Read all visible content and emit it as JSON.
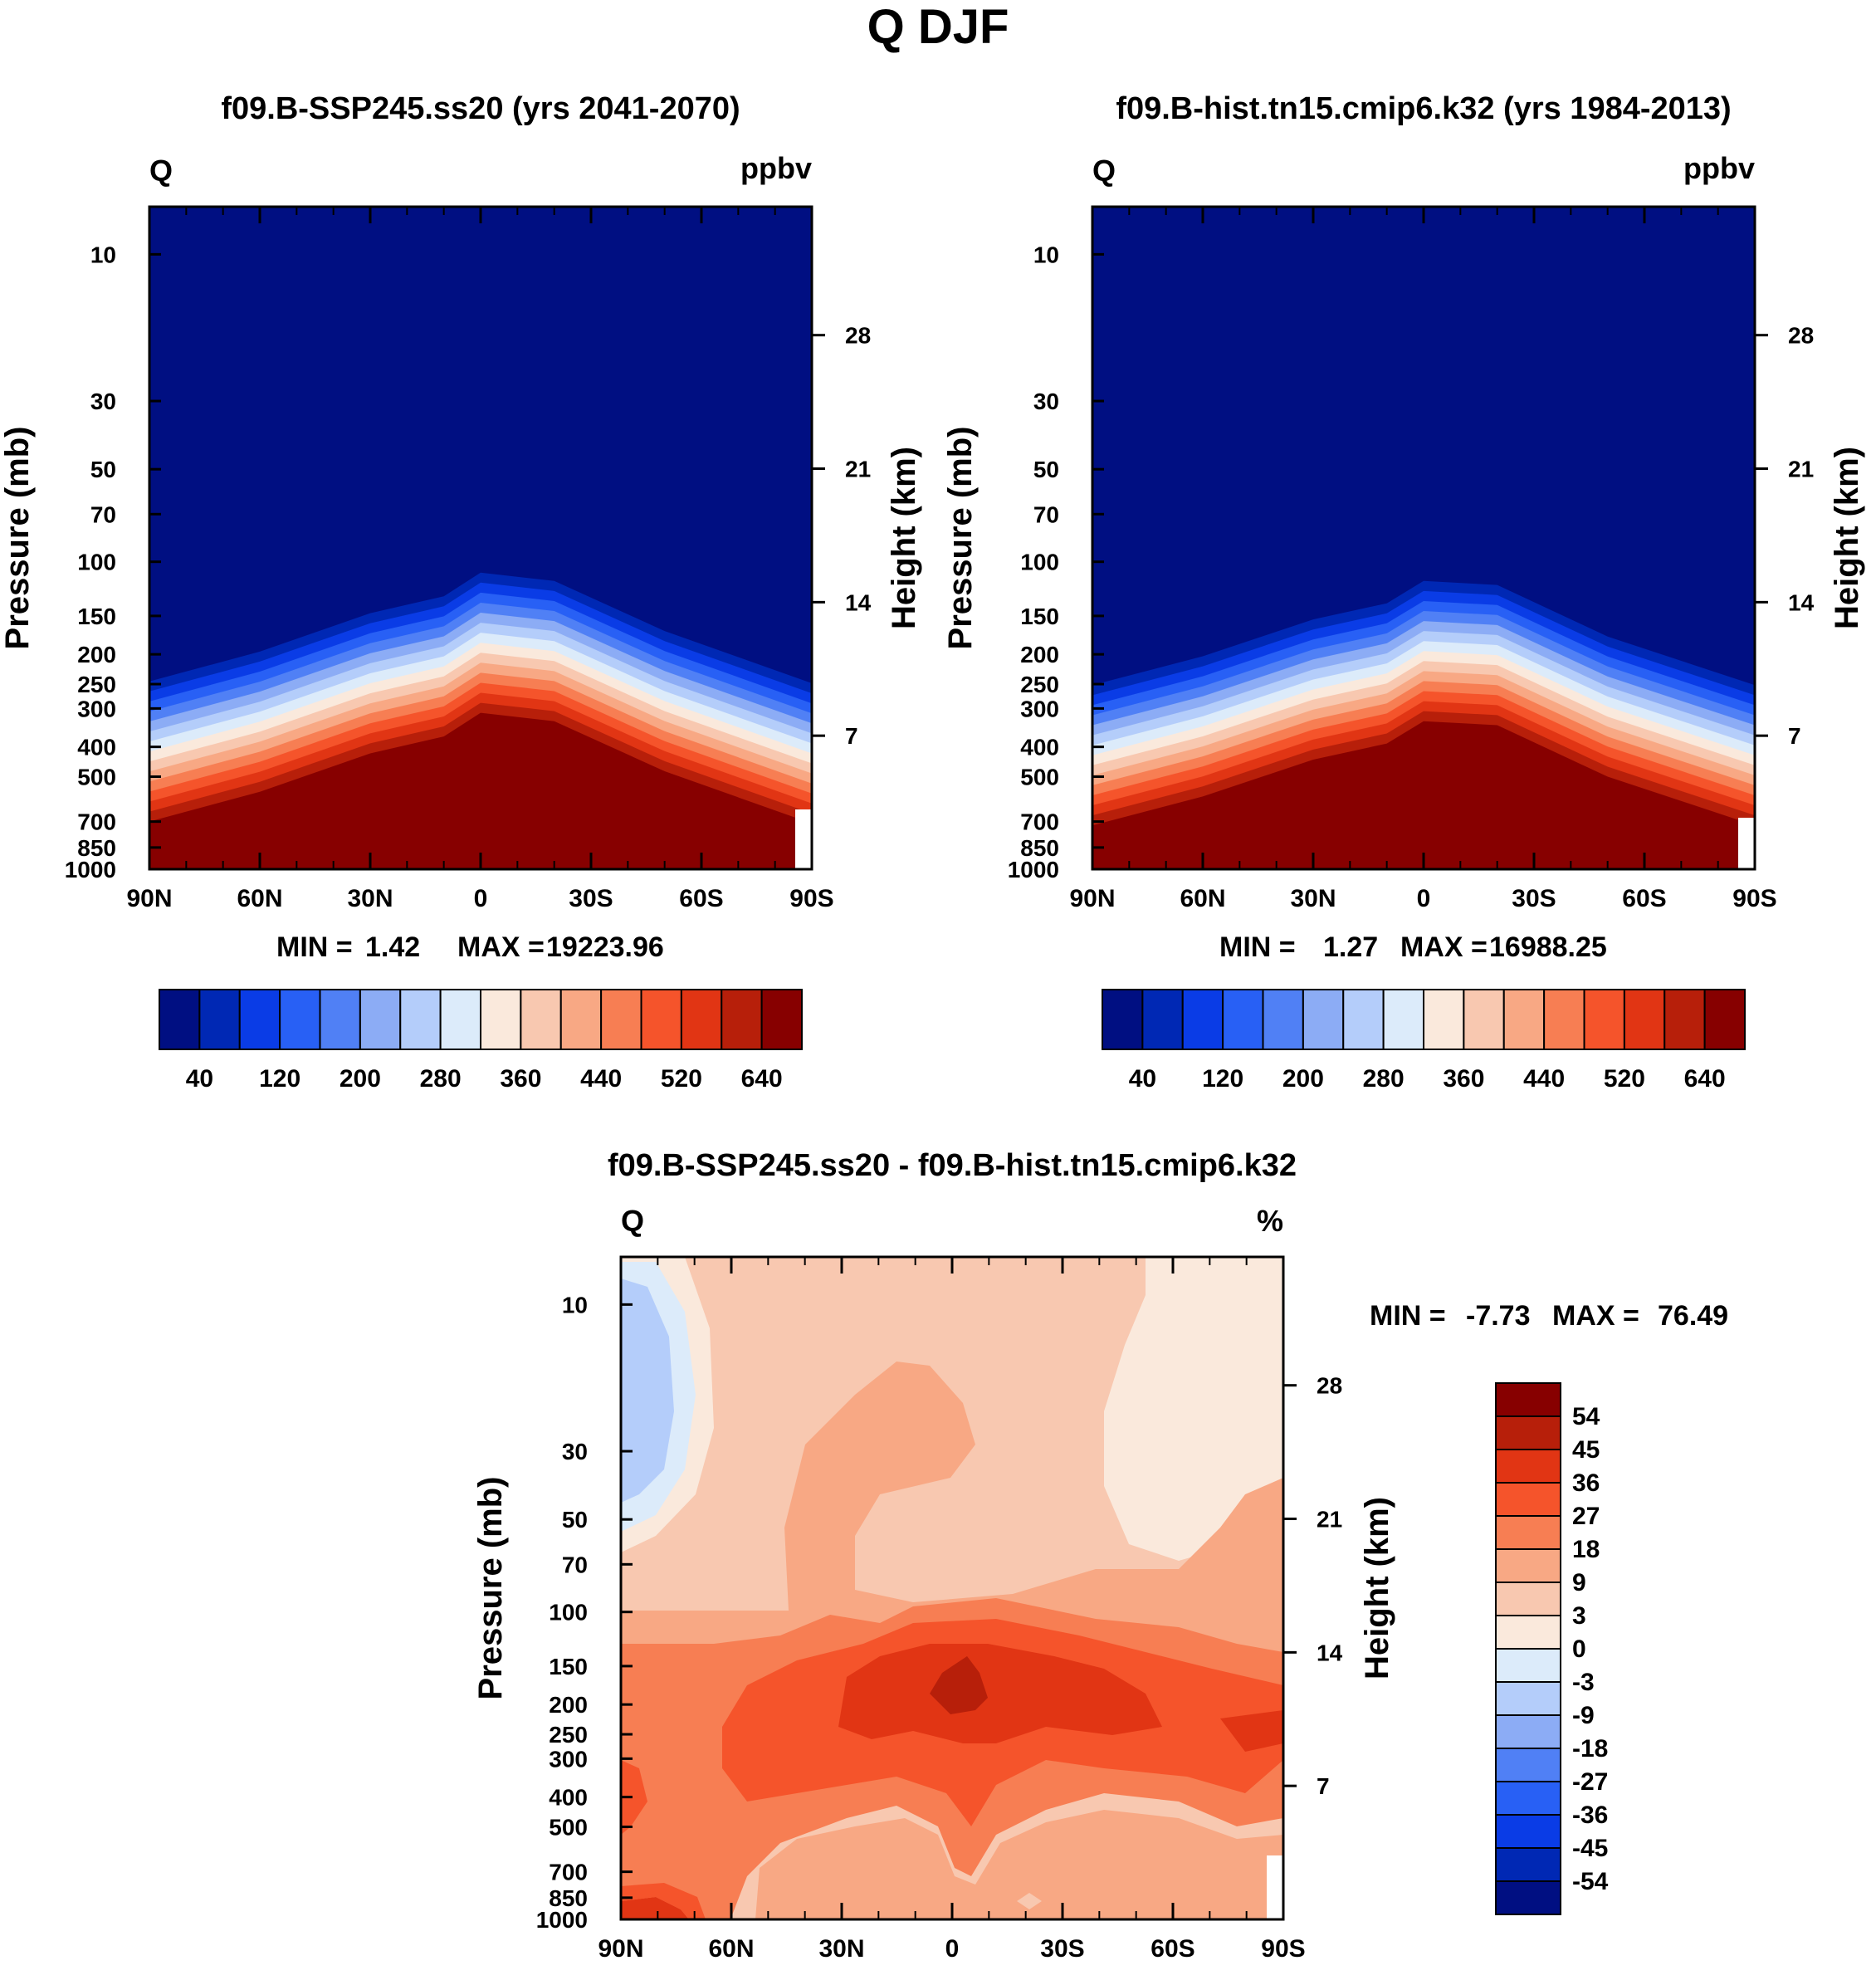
{
  "figure": {
    "title": "Q DJF"
  },
  "chart_data": [
    {
      "id": "left",
      "type": "contour",
      "title": "f09.B-SSP245.ss20 (yrs 2041-2070)",
      "variable": "Q",
      "units": "ppbv",
      "ylabel": "Pressure (mb)",
      "ylabel_right": "Height (km)",
      "x_ticks": [
        "90N",
        "60N",
        "30N",
        "0",
        "30S",
        "60S",
        "90S"
      ],
      "y_ticks": [
        "10",
        "30",
        "50",
        "70",
        "100",
        "150",
        "200",
        "250",
        "300",
        "400",
        "500",
        "700",
        "850",
        "1000"
      ],
      "y_ticks_right": [
        "28",
        "21",
        "14",
        "7"
      ],
      "min_label": "MIN =",
      "min_value": "1.42",
      "max_label": "MAX =",
      "max_value": "19223.96",
      "colorbar_labels": [
        "40",
        "120",
        "200",
        "280",
        "360",
        "440",
        "520",
        "640"
      ],
      "colors": [
        "#000f82",
        "#0028b4",
        "#0a3ce6",
        "#2860f5",
        "#5080f5",
        "#8cacf5",
        "#b4cdfa",
        "#dcebfa",
        "#fae9dc",
        "#f8c8b0",
        "#f8a884",
        "#f77e53",
        "#f5542b",
        "#e13514",
        "#b71f0a",
        "#870000"
      ],
      "tropopause_pressure_mb": [
        {
          "lat": 90,
          "p": 700
        },
        {
          "lat": 60,
          "p": 560
        },
        {
          "lat": 30,
          "p": 420
        },
        {
          "lat": 10,
          "p": 370
        },
        {
          "lat": 0,
          "p": 310
        },
        {
          "lat": -20,
          "p": 330
        },
        {
          "lat": -50,
          "p": 480
        },
        {
          "lat": -90,
          "p": 710
        }
      ]
    },
    {
      "id": "right",
      "type": "contour",
      "title": "f09.B-hist.tn15.cmip6.k32 (yrs 1984-2013)",
      "variable": "Q",
      "units": "ppbv",
      "ylabel": "Pressure (mb)",
      "ylabel_right": "Height (km)",
      "x_ticks": [
        "90N",
        "60N",
        "30N",
        "0",
        "30S",
        "60S",
        "90S"
      ],
      "y_ticks": [
        "10",
        "30",
        "50",
        "70",
        "100",
        "150",
        "200",
        "250",
        "300",
        "400",
        "500",
        "700",
        "850",
        "1000"
      ],
      "y_ticks_right": [
        "28",
        "21",
        "14",
        "7"
      ],
      "min_label": "MIN =",
      "min_value": "1.27",
      "max_label": "MAX =",
      "max_value": "16988.25",
      "colorbar_labels": [
        "40",
        "120",
        "200",
        "280",
        "360",
        "440",
        "520",
        "640"
      ],
      "colors": [
        "#000f82",
        "#0028b4",
        "#0a3ce6",
        "#2860f5",
        "#5080f5",
        "#8cacf5",
        "#b4cdfa",
        "#dcebfa",
        "#fae9dc",
        "#f8c8b0",
        "#f8a884",
        "#f77e53",
        "#f5542b",
        "#e13514",
        "#b71f0a",
        "#870000"
      ],
      "tropopause_pressure_mb": [
        {
          "lat": 90,
          "p": 720
        },
        {
          "lat": 60,
          "p": 580
        },
        {
          "lat": 30,
          "p": 440
        },
        {
          "lat": 10,
          "p": 390
        },
        {
          "lat": 0,
          "p": 330
        },
        {
          "lat": -20,
          "p": 340
        },
        {
          "lat": -50,
          "p": 500
        },
        {
          "lat": -90,
          "p": 720
        }
      ]
    },
    {
      "id": "diff",
      "type": "contour",
      "title": "f09.B-SSP245.ss20 - f09.B-hist.tn15.cmip6.k32",
      "variable": "Q",
      "units": "%",
      "ylabel": "Pressure (mb)",
      "ylabel_right": "Height (km)",
      "x_ticks": [
        "90N",
        "60N",
        "30N",
        "0",
        "30S",
        "60S",
        "90S"
      ],
      "y_ticks": [
        "10",
        "30",
        "50",
        "70",
        "100",
        "150",
        "200",
        "250",
        "300",
        "400",
        "500",
        "700",
        "850",
        "1000"
      ],
      "y_ticks_right": [
        "28",
        "21",
        "14",
        "7"
      ],
      "min_label": "MIN =",
      "min_value": "-7.73",
      "max_label": "MAX =",
      "max_value": "76.49",
      "colorbar_labels": [
        "54",
        "45",
        "36",
        "27",
        "18",
        "9",
        "3",
        "0",
        "-3",
        "-9",
        "-18",
        "-27",
        "-36",
        "-45",
        "-54"
      ],
      "colors": [
        "#870000",
        "#b71f0a",
        "#e13514",
        "#f5542b",
        "#f77e53",
        "#f8a884",
        "#f8c8b0",
        "#fae9dc",
        "#dcebfa",
        "#b4cdfa",
        "#8cacf5",
        "#5080f5",
        "#2860f5",
        "#0a3ce6",
        "#0028b4",
        "#000f82"
      ]
    }
  ]
}
